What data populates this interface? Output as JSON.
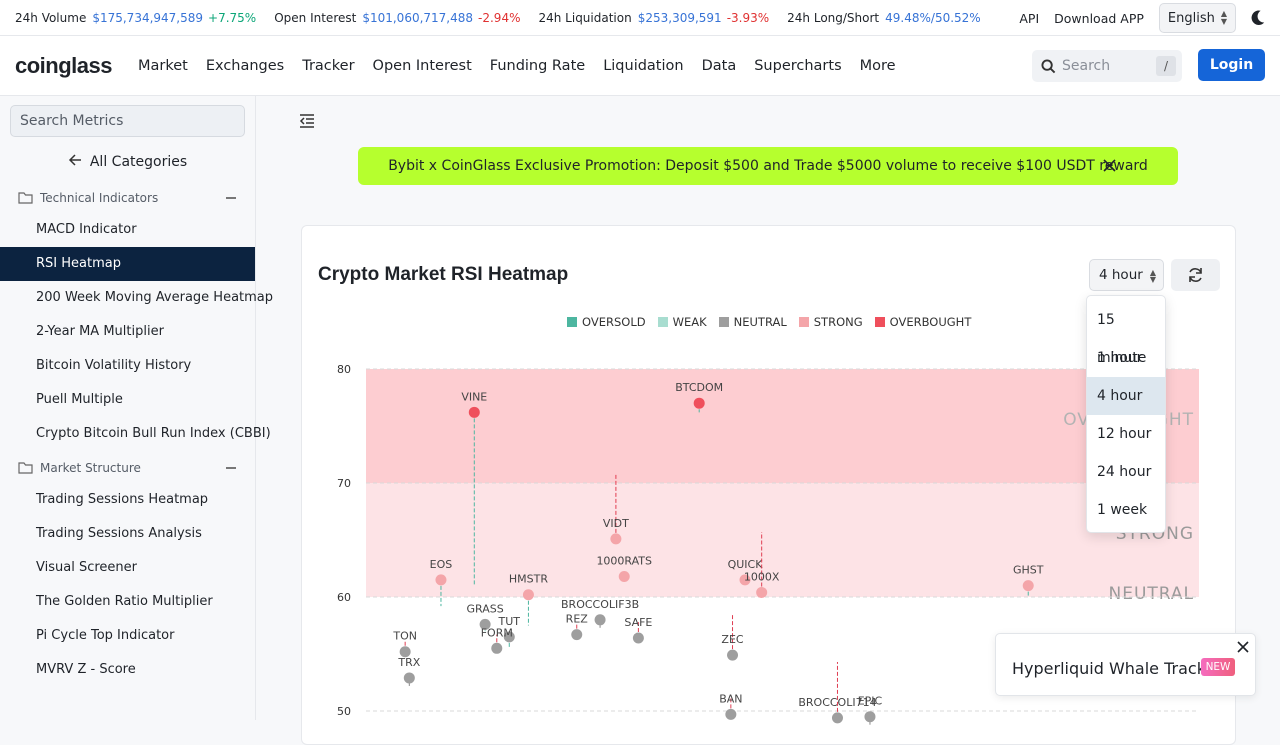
{
  "stats": [
    {
      "label": "24h Volume",
      "value": "$175,734,947,589",
      "change": "+7.75%",
      "dir": "pos"
    },
    {
      "label": "Open Interest",
      "value": "$101,060,717,488",
      "change": "-2.94%",
      "dir": "neg"
    },
    {
      "label": "24h Liquidation",
      "value": "$253,309,591",
      "change": "-3.93%",
      "dir": "neg"
    },
    {
      "label": "24h Long/Short",
      "value": "49.48%/50.52%",
      "change": "",
      "dir": "pos"
    }
  ],
  "topright": {
    "api": "API",
    "download": "Download APP",
    "language": "English"
  },
  "navbar": {
    "logo": "coinglass",
    "items": [
      "Market",
      "Exchanges",
      "Tracker",
      "Open Interest",
      "Funding Rate",
      "Liquidation",
      "Data",
      "Supercharts",
      "More"
    ],
    "search_placeholder": "Search",
    "search_shortcut": "/",
    "login": "Login"
  },
  "sidebar": {
    "search_placeholder": "Search Metrics",
    "all_categories": "All Categories",
    "groups": [
      {
        "title": "Technical Indicators",
        "items": [
          "MACD Indicator",
          "RSI Heatmap",
          "200 Week Moving Average Heatmap",
          "2-Year MA Multiplier",
          "Bitcoin Volatility History",
          "Puell Multiple",
          "Crypto Bitcoin Bull Run Index (CBBI)"
        ]
      },
      {
        "title": "Market Structure",
        "items": [
          "Trading Sessions Heatmap",
          "Trading Sessions Analysis",
          "Visual Screener",
          "The Golden Ratio Multiplier",
          "Pi Cycle Top Indicator",
          "MVRV Z - Score"
        ]
      }
    ],
    "active": "RSI Heatmap"
  },
  "promo": "Bybit x CoinGlass Exclusive Promotion: Deposit $500 and Trade $5000 volume to receive $100 USDT reward",
  "card": {
    "title": "Crypto Market RSI Heatmap",
    "timeframe": "4 hour",
    "timeframe_options": [
      "15 minute",
      "1 hour",
      "4 hour",
      "12 hour",
      "24 hour",
      "1 week"
    ]
  },
  "colors": {
    "oversold": "#4db6a0",
    "weak": "#a8ddd0",
    "neutral": "#9e9e9e",
    "strong": "#f4a5a9",
    "overbought": "#ef4f5c"
  },
  "chart_data": {
    "type": "scatter",
    "legend": [
      "OVERSOLD",
      "WEAK",
      "NEUTRAL",
      "STRONG",
      "OVERBOUGHT"
    ],
    "legend_position": "top-center",
    "yticks": [
      50,
      60,
      70,
      80
    ],
    "ylim": [
      48,
      80
    ],
    "zones": [
      {
        "label": "OVERBOUGHT",
        "from": 70,
        "to": 80
      },
      {
        "label": "STRONG",
        "from": 60,
        "to": 70
      },
      {
        "label": "NEUTRAL",
        "from": 40,
        "to": 60
      }
    ],
    "points": [
      {
        "name": "VINE",
        "x": 0.13,
        "rsi": 76.2,
        "prev": 61.0,
        "cat": "overbought"
      },
      {
        "name": "BTCDOM",
        "x": 0.4,
        "rsi": 77.0,
        "prev": 76.2,
        "cat": "overbought"
      },
      {
        "name": "VIDT",
        "x": 0.3,
        "rsi": 65.1,
        "prev": 70.8,
        "cat": "strong"
      },
      {
        "name": "1000RATS",
        "x": 0.31,
        "rsi": 61.8,
        "prev": 62.2,
        "cat": "strong"
      },
      {
        "name": "QUICK",
        "x": 0.455,
        "rsi": 61.5,
        "prev": 61.8,
        "cat": "strong"
      },
      {
        "name": "1000X",
        "x": 0.475,
        "rsi": 60.4,
        "prev": 65.7,
        "cat": "strong"
      },
      {
        "name": "GHST",
        "x": 0.795,
        "rsi": 61.0,
        "prev": 60.1,
        "cat": "strong"
      },
      {
        "name": "EOS",
        "x": 0.09,
        "rsi": 61.5,
        "prev": 59.2,
        "cat": "strong"
      },
      {
        "name": "HMSTR",
        "x": 0.195,
        "rsi": 60.2,
        "prev": 57.5,
        "cat": "strong"
      },
      {
        "name": "GRASS",
        "x": 0.143,
        "rsi": 57.6,
        "prev": 57.0,
        "cat": "neutral"
      },
      {
        "name": "TUT",
        "x": 0.172,
        "rsi": 56.5,
        "prev": 55.5,
        "cat": "neutral"
      },
      {
        "name": "FORM",
        "x": 0.157,
        "rsi": 55.5,
        "prev": 56.7,
        "cat": "neutral"
      },
      {
        "name": "BROCCOLIF3B",
        "x": 0.281,
        "rsi": 58.0,
        "prev": 58.0,
        "cat": "neutral"
      },
      {
        "name": "REZ",
        "x": 0.253,
        "rsi": 56.7,
        "prev": 57.6,
        "cat": "neutral"
      },
      {
        "name": "SAFE",
        "x": 0.327,
        "rsi": 56.4,
        "prev": 57.8,
        "cat": "neutral"
      },
      {
        "name": "TON",
        "x": 0.047,
        "rsi": 55.2,
        "prev": 56.2,
        "cat": "neutral"
      },
      {
        "name": "TRX",
        "x": 0.052,
        "rsi": 52.9,
        "prev": 52.9,
        "cat": "neutral"
      },
      {
        "name": "ZEC",
        "x": 0.44,
        "rsi": 54.9,
        "prev": 58.5,
        "cat": "neutral"
      },
      {
        "name": "BAN",
        "x": 0.438,
        "rsi": 49.7,
        "prev": 51.1,
        "cat": "neutral"
      },
      {
        "name": "BROCCOLI714",
        "x": 0.566,
        "rsi": 49.4,
        "prev": 54.3,
        "cat": "neutral"
      },
      {
        "name": "EPIC",
        "x": 0.605,
        "rsi": 49.5,
        "prev": 49.5,
        "cat": "neutral"
      }
    ]
  },
  "toast": {
    "text": "Hyperliquid Whale Tracker",
    "badge": "NEW"
  }
}
